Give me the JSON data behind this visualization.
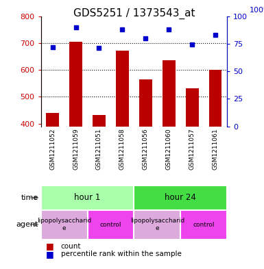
{
  "title": "GDS5251 / 1373543_at",
  "samples": [
    "GSM1211052",
    "GSM1211059",
    "GSM1211051",
    "GSM1211058",
    "GSM1211056",
    "GSM1211060",
    "GSM1211057",
    "GSM1211061"
  ],
  "counts": [
    440,
    705,
    432,
    672,
    565,
    636,
    532,
    600
  ],
  "percentiles": [
    72,
    90,
    71,
    88,
    80,
    88,
    74,
    83
  ],
  "ylim_left": [
    390,
    800
  ],
  "ylim_right": [
    0,
    100
  ],
  "yticks_left": [
    400,
    500,
    600,
    700,
    800
  ],
  "yticks_right": [
    0,
    25,
    50,
    75,
    100
  ],
  "bar_color": "#bb0000",
  "dot_color": "#0000cc",
  "time_groups": [
    {
      "label": "hour 1",
      "start": 0,
      "end": 4,
      "color": "#aaffaa"
    },
    {
      "label": "hour 24",
      "start": 4,
      "end": 8,
      "color": "#44dd44"
    }
  ],
  "agent_groups": [
    {
      "label": "lipopolysaccharid\ne",
      "start": 0,
      "end": 2,
      "color": "#ddaadd"
    },
    {
      "label": "control",
      "start": 2,
      "end": 4,
      "color": "#ee44ee"
    },
    {
      "label": "lipopolysaccharid\ne",
      "start": 4,
      "end": 6,
      "color": "#ddaadd"
    },
    {
      "label": "control",
      "start": 6,
      "end": 8,
      "color": "#ee44ee"
    }
  ],
  "sample_bg_color": "#cccccc",
  "sample_divider_color": "#ffffff",
  "legend_count_color": "#bb0000",
  "legend_dot_color": "#0000cc",
  "title_fontsize": 11,
  "axis_color_left": "#cc0000",
  "axis_color_right": "#0000cc",
  "grid_color": "#000000",
  "fig_width": 3.85,
  "fig_height": 3.93,
  "dpi": 100
}
